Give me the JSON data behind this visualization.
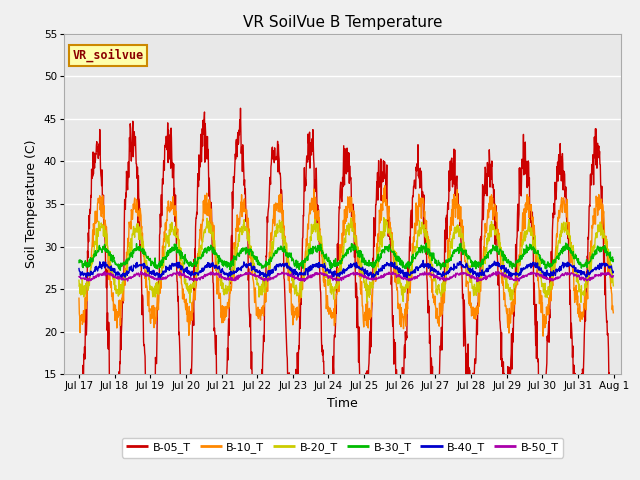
{
  "title": "VR SoilVue B Temperature",
  "xlabel": "Time",
  "ylabel": "Soil Temperature (C)",
  "ylim": [
    15,
    55
  ],
  "xlim_days": [
    16.58,
    32.2
  ],
  "xtick_days": [
    17,
    18,
    19,
    20,
    21,
    22,
    23,
    24,
    25,
    26,
    27,
    28,
    29,
    30,
    31,
    32
  ],
  "xtick_labels": [
    "Jul 17",
    "Jul 18",
    "Jul 19",
    "Jul 20",
    "Jul 21",
    "Jul 22",
    "Jul 23",
    "Jul 24",
    "Jul 25",
    "Jul 26",
    "Jul 27",
    "Jul 28",
    "Jul 29",
    "Jul 30",
    "Jul 31",
    "Aug 1"
  ],
  "yticks": [
    15,
    20,
    25,
    30,
    35,
    40,
    45,
    50,
    55
  ],
  "series_order": [
    "B-05_T",
    "B-10_T",
    "B-20_T",
    "B-30_T",
    "B-40_T",
    "B-50_T"
  ],
  "series": {
    "B-05_T": {
      "color": "#cc0000",
      "linewidth": 1.0
    },
    "B-10_T": {
      "color": "#ff8800",
      "linewidth": 1.0
    },
    "B-20_T": {
      "color": "#cccc00",
      "linewidth": 1.0
    },
    "B-30_T": {
      "color": "#00bb00",
      "linewidth": 1.0
    },
    "B-40_T": {
      "color": "#0000cc",
      "linewidth": 1.0
    },
    "B-50_T": {
      "color": "#aa00aa",
      "linewidth": 1.0
    }
  },
  "annotation_text": "VR_soilvue",
  "bg_color": "#e8e8e8",
  "fig_bg_color": "#f0f0f0",
  "title_fontsize": 11,
  "axis_label_fontsize": 9,
  "tick_fontsize": 7.5,
  "legend_fontsize": 8
}
